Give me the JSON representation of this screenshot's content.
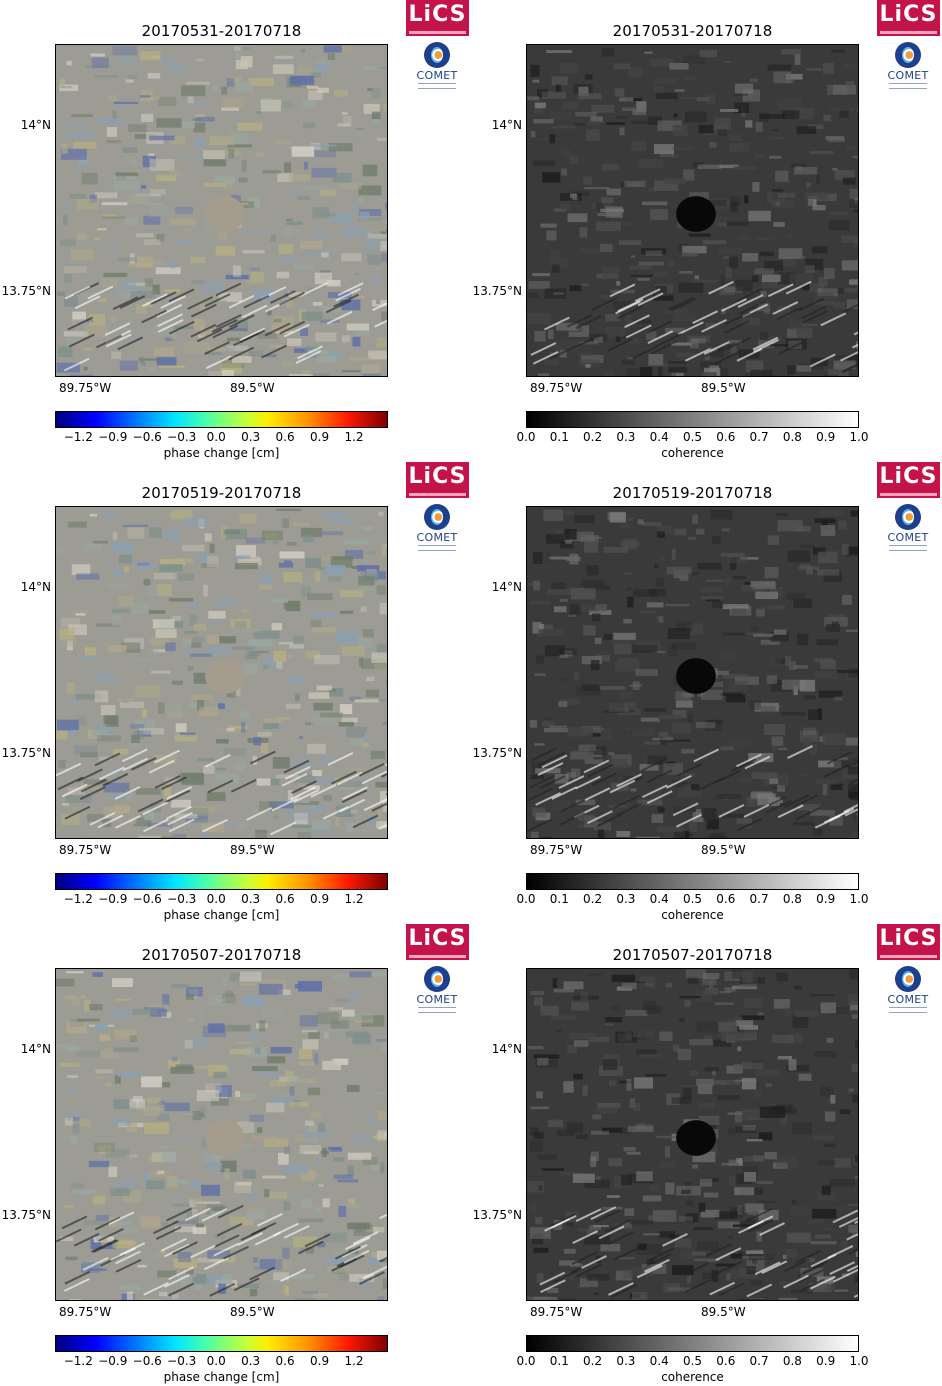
{
  "rows": [
    {
      "left": {
        "title": "20170531-20170718",
        "lat_labels": [
          "14°N",
          "13.75°N"
        ],
        "lon_labels": [
          "89.75°W",
          "89.5°W"
        ],
        "colorbar_ticks": [
          "−1.2",
          "−0.9",
          "−0.6",
          "−0.3",
          "0.0",
          "0.3",
          "0.6",
          "0.9",
          "1.2"
        ],
        "colorbar_label": "phase change [cm]"
      },
      "right": {
        "title": "20170531-20170718",
        "lat_labels": [
          "14°N",
          "13.75°N"
        ],
        "lon_labels": [
          "89.75°W",
          "89.5°W"
        ],
        "colorbar_ticks": [
          "0.0",
          "0.1",
          "0.2",
          "0.3",
          "0.4",
          "0.5",
          "0.6",
          "0.7",
          "0.8",
          "0.9",
          "1.0"
        ],
        "colorbar_label": "coherence"
      }
    },
    {
      "left": {
        "title": "20170519-20170718",
        "lat_labels": [
          "14°N",
          "13.75°N"
        ],
        "lon_labels": [
          "89.75°W",
          "89.5°W"
        ],
        "colorbar_ticks": [
          "−1.2",
          "−0.9",
          "−0.6",
          "−0.3",
          "0.0",
          "0.3",
          "0.6",
          "0.9",
          "1.2"
        ],
        "colorbar_label": "phase change [cm]"
      },
      "right": {
        "title": "20170519-20170718",
        "lat_labels": [
          "14°N",
          "13.75°N"
        ],
        "lon_labels": [
          "89.75°W",
          "89.5°W"
        ],
        "colorbar_ticks": [
          "0.0",
          "0.1",
          "0.2",
          "0.3",
          "0.4",
          "0.5",
          "0.6",
          "0.7",
          "0.8",
          "0.9",
          "1.0"
        ],
        "colorbar_label": "coherence"
      }
    },
    {
      "left": {
        "title": "20170507-20170718",
        "lat_labels": [
          "14°N",
          "13.75°N"
        ],
        "lon_labels": [
          "89.75°W",
          "89.5°W"
        ],
        "colorbar_ticks": [
          "−1.2",
          "−0.9",
          "−0.6",
          "−0.3",
          "0.0",
          "0.3",
          "0.6",
          "0.9",
          "1.2"
        ],
        "colorbar_label": "phase change [cm]"
      },
      "right": {
        "title": "20170507-20170718",
        "lat_labels": [
          "14°N",
          "13.75°N"
        ],
        "lon_labels": [
          "89.75°W",
          "89.5°W"
        ],
        "colorbar_ticks": [
          "0.0",
          "0.1",
          "0.2",
          "0.3",
          "0.4",
          "0.5",
          "0.6",
          "0.7",
          "0.8",
          "0.9",
          "1.0"
        ],
        "colorbar_label": "coherence"
      }
    }
  ],
  "logos": {
    "lics": "LiCS",
    "comet": "COMET"
  },
  "colors": {
    "lics_brand": "#c4124a",
    "comet_brand": "#1e3f8c"
  },
  "colormaps": {
    "phase": "jet",
    "coherence": "grayscale"
  }
}
